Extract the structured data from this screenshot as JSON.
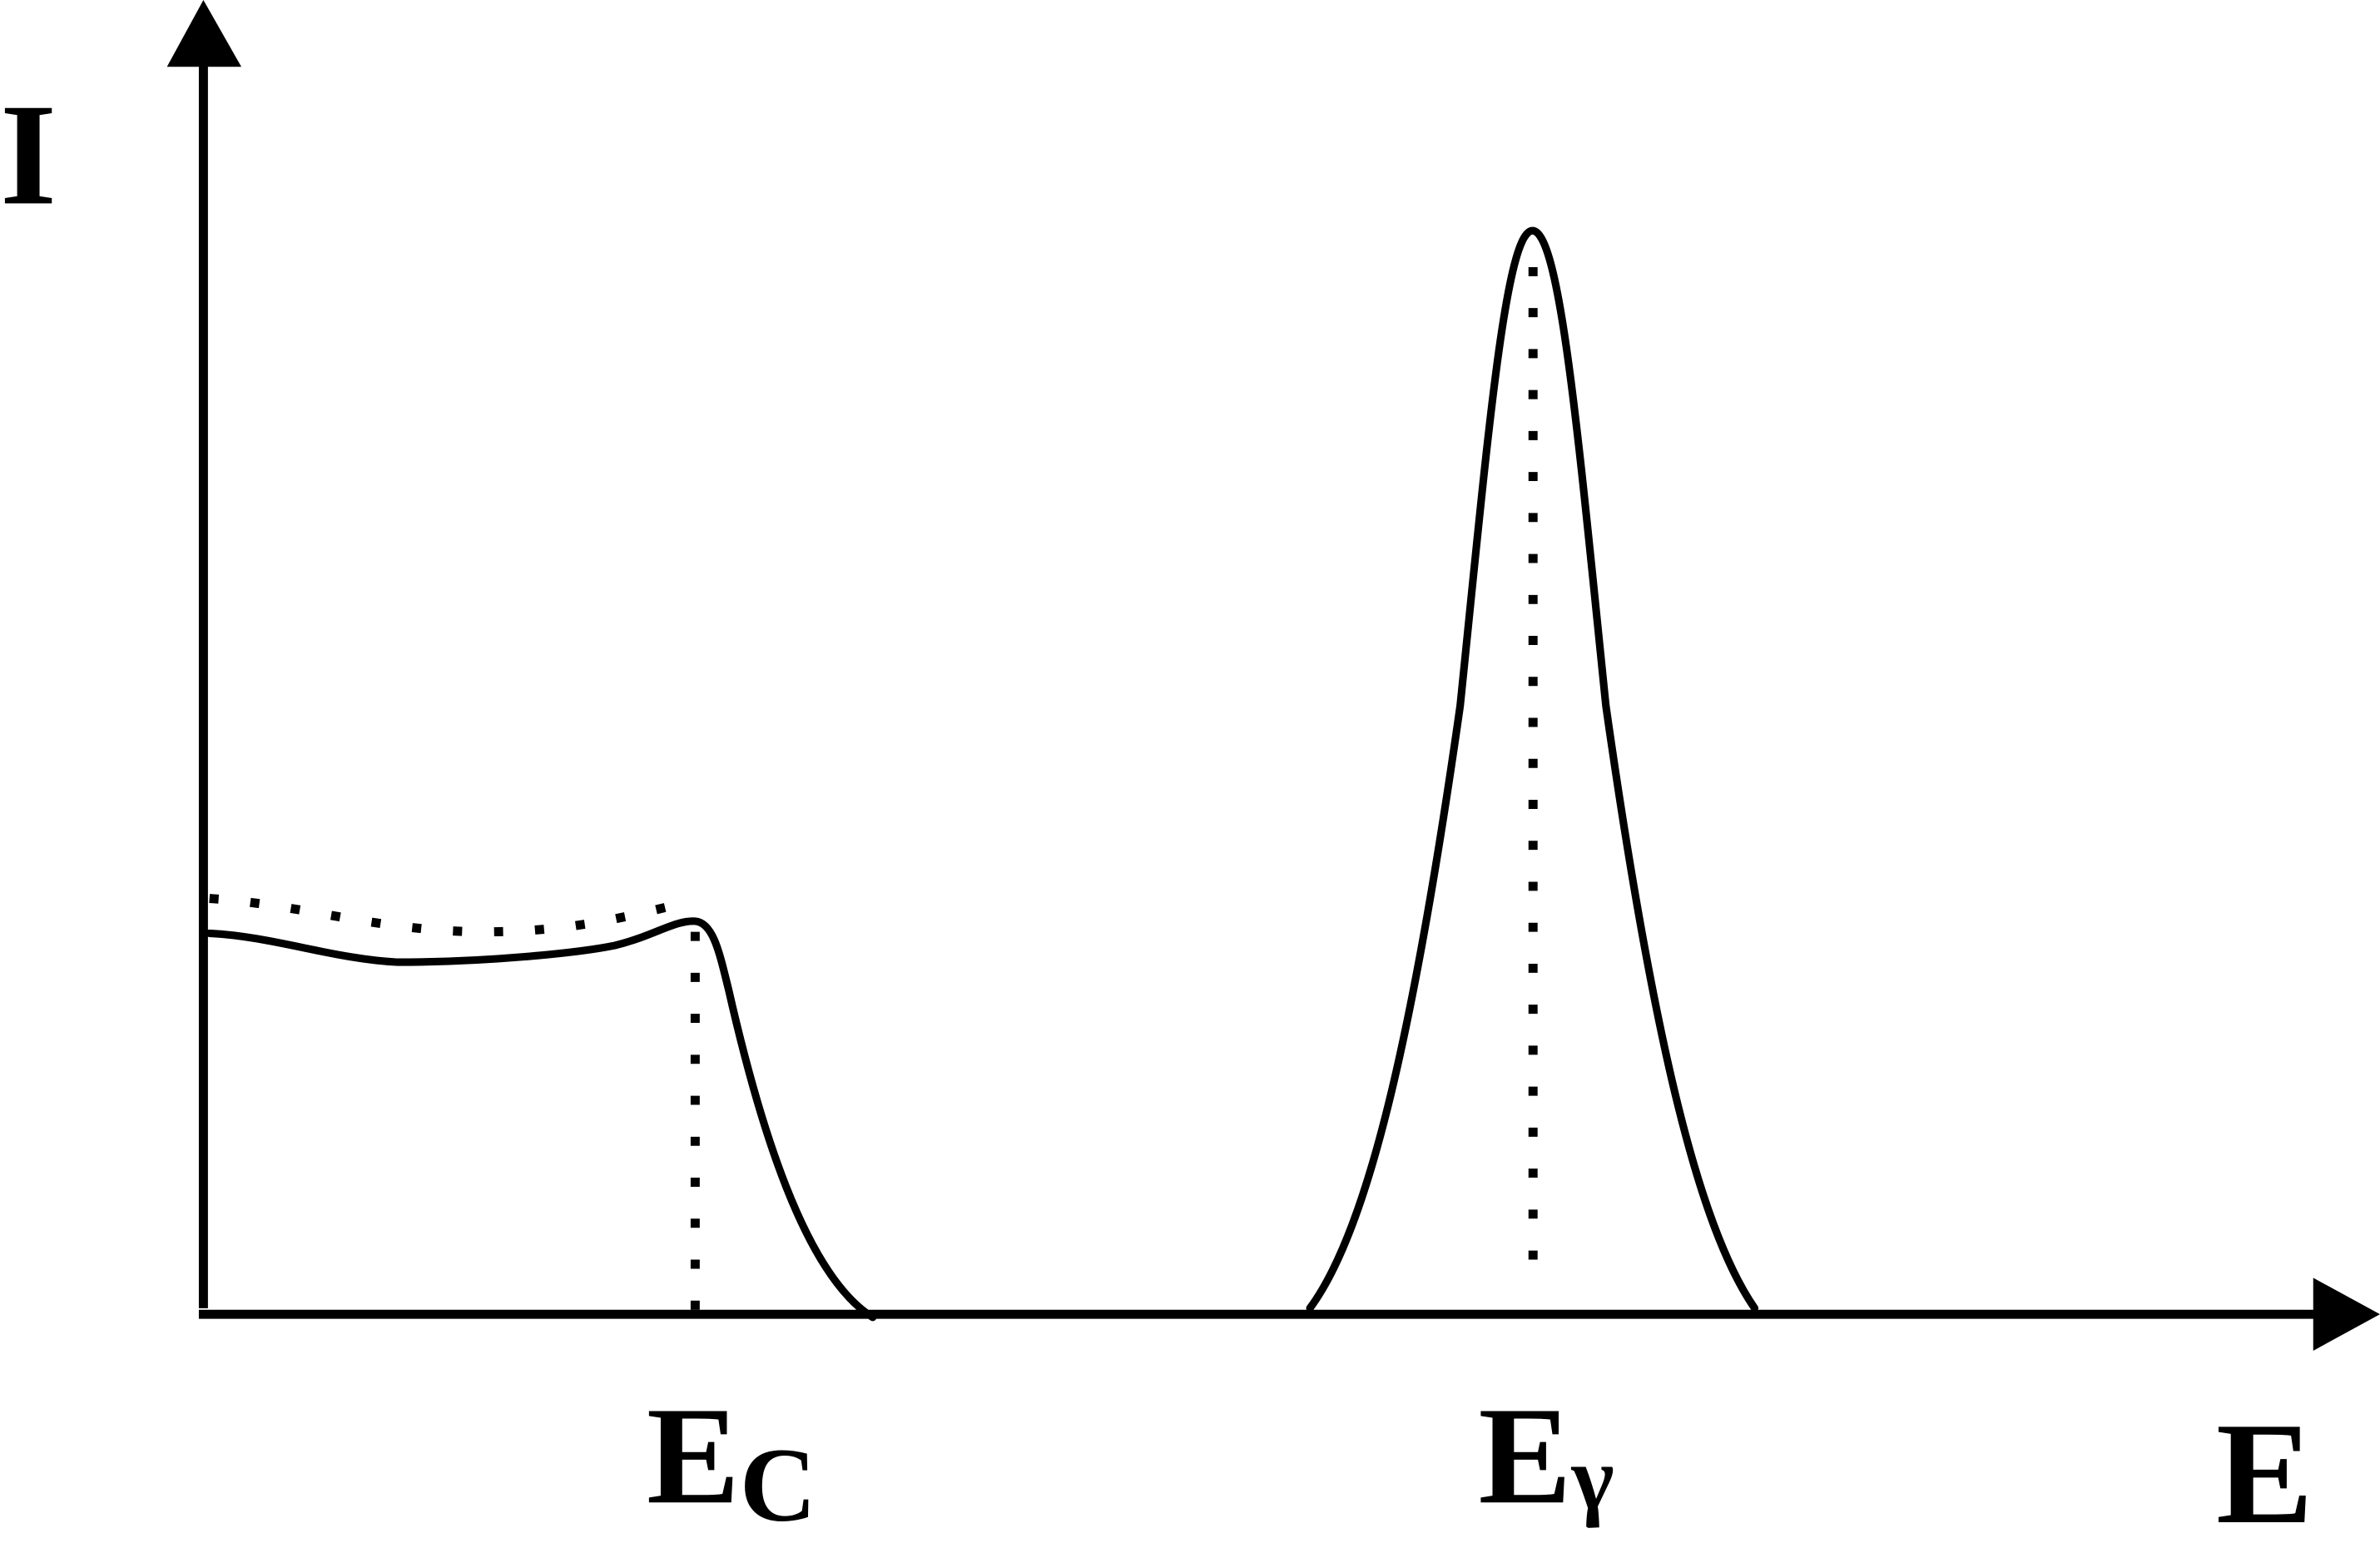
{
  "axes": {
    "y_label": "I",
    "x_label": "E"
  },
  "markers": [
    {
      "label": "E",
      "subscript": "C"
    },
    {
      "label": "E",
      "subscript": "γ"
    }
  ]
}
